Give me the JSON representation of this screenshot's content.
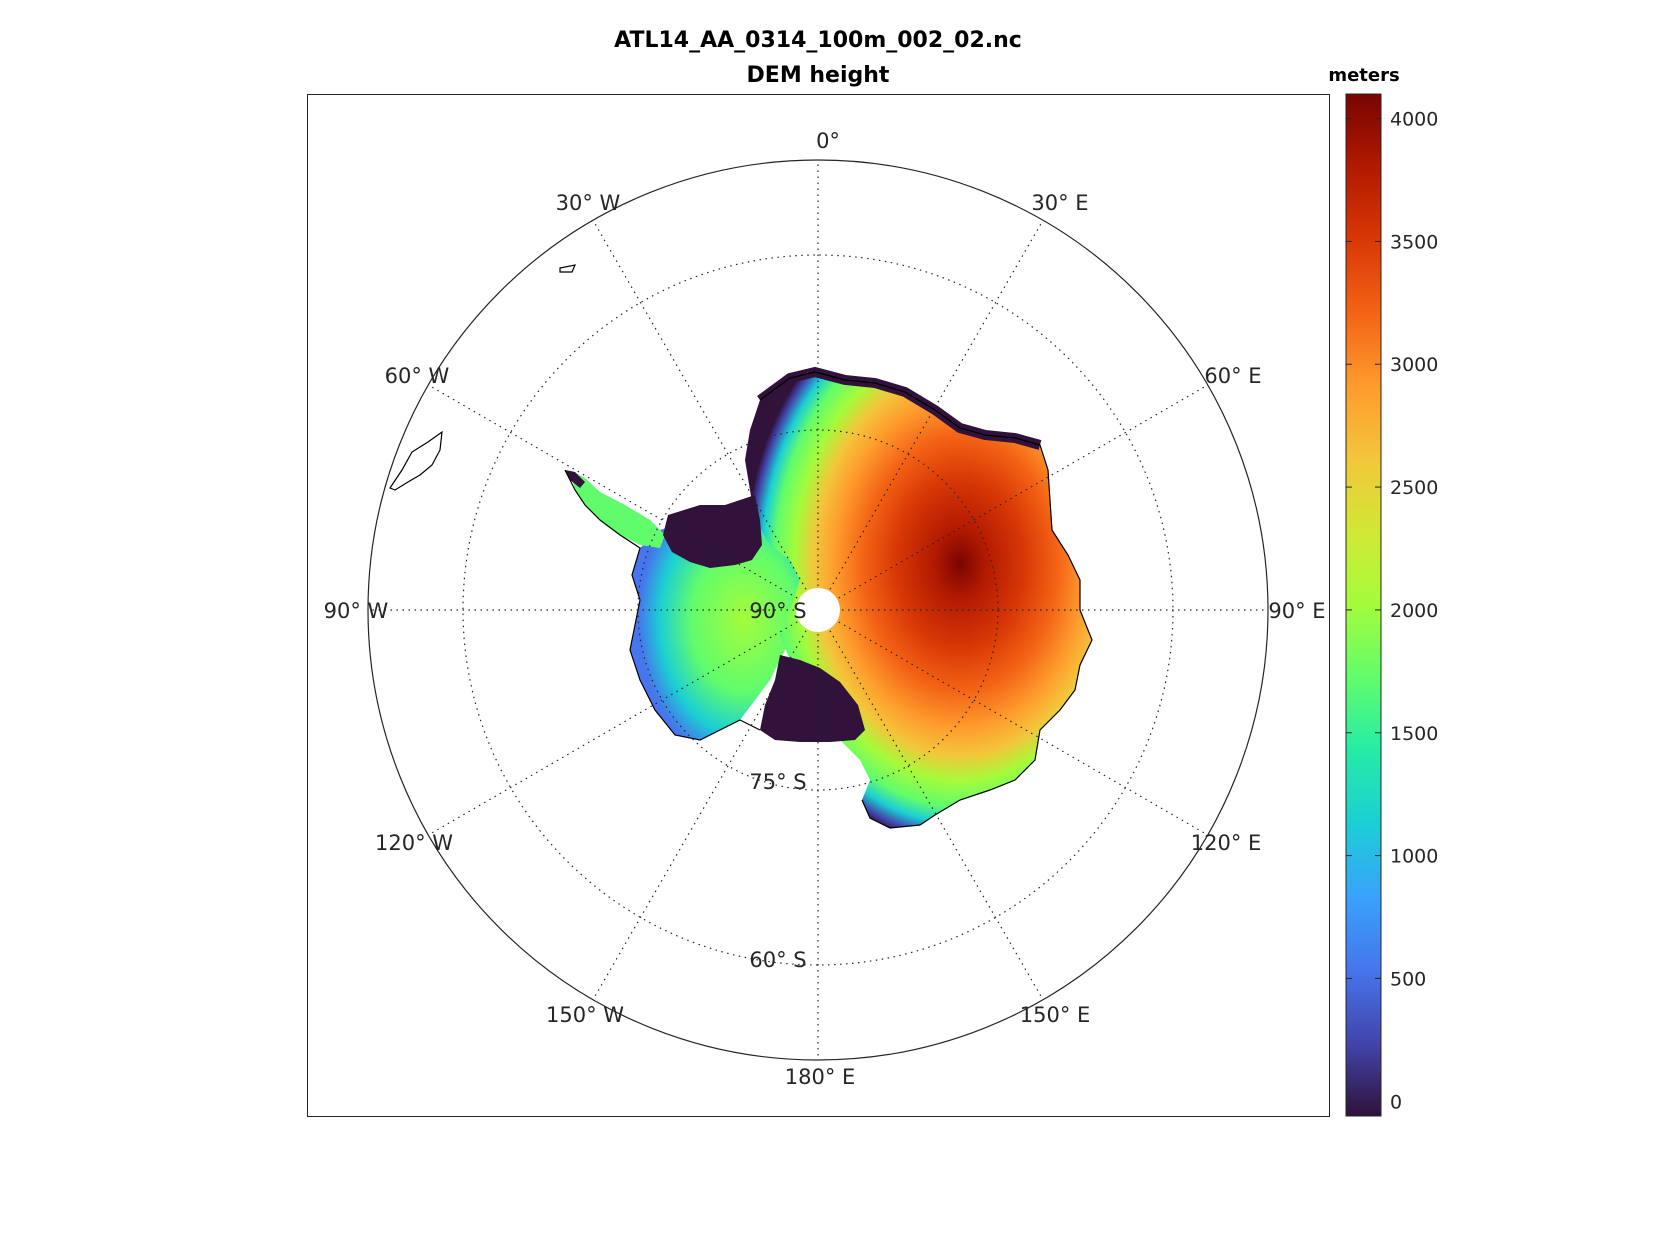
{
  "figure": {
    "title": "ATL14_AA_0314_100m_002_02.nc",
    "subtitle": "DEM height"
  },
  "map": {
    "projection": "polar stereographic (south)",
    "graticule": "dotted",
    "meridian_labels": [
      "0°",
      "30° E",
      "60° E",
      "90° E",
      "120° E",
      "150° E",
      "180° E",
      "150° W",
      "120° W",
      "90° W",
      "60° W",
      "30° W"
    ],
    "parallel_labels": [
      "90° S",
      "75° S",
      "60° S"
    ]
  },
  "colorbar": {
    "label": "meters",
    "min": -60,
    "max": 4100,
    "ticks": [
      "4000",
      "3500",
      "3000",
      "2500",
      "2000",
      "1500",
      "1000",
      "500",
      "0"
    ],
    "colormap": "turbo",
    "colors": [
      "#30123b",
      "#4145ab",
      "#4675ed",
      "#39a2fc",
      "#1bcfd4",
      "#24eca6",
      "#61fc6c",
      "#a4fc3b",
      "#d1e834",
      "#f3c63a",
      "#fe9b2d",
      "#f36315",
      "#d93806",
      "#b11901",
      "#7a0402"
    ]
  },
  "chart_data": {
    "type": "heatmap",
    "title": "ATL14_AA_0314_100m_002_02.nc",
    "subtitle": "DEM height",
    "variable": "DEM height",
    "units": "meters",
    "color_range": [
      -60,
      4100
    ],
    "colorbar_ticks": [
      0,
      500,
      1000,
      1500,
      2000,
      2500,
      3000,
      3500,
      4000
    ]
  }
}
